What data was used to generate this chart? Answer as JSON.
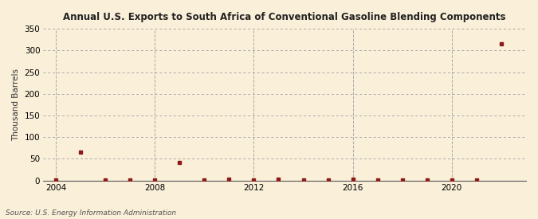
{
  "title": "Annual U.S. Exports to South Africa of Conventional Gasoline Blending Components",
  "ylabel": "Thousand Barrels",
  "source": "Source: U.S. Energy Information Administration",
  "background_color": "#faefd8",
  "plot_bg_color": "#faefd8",
  "xlim": [
    2003.5,
    2023
  ],
  "ylim": [
    0,
    350
  ],
  "yticks": [
    0,
    50,
    100,
    150,
    200,
    250,
    300,
    350
  ],
  "xticks": [
    2004,
    2008,
    2012,
    2016,
    2020
  ],
  "vlines": [
    2004,
    2008,
    2012,
    2016,
    2020
  ],
  "marker_color": "#8b1a1a",
  "years": [
    2004,
    2005,
    2006,
    2007,
    2008,
    2009,
    2010,
    2011,
    2012,
    2013,
    2014,
    2015,
    2016,
    2017,
    2018,
    2019,
    2020,
    2021,
    2022
  ],
  "values": [
    1,
    65,
    1,
    1,
    1,
    42,
    1,
    2,
    1,
    2,
    1,
    1,
    2,
    1,
    1,
    1,
    1,
    1,
    315
  ]
}
